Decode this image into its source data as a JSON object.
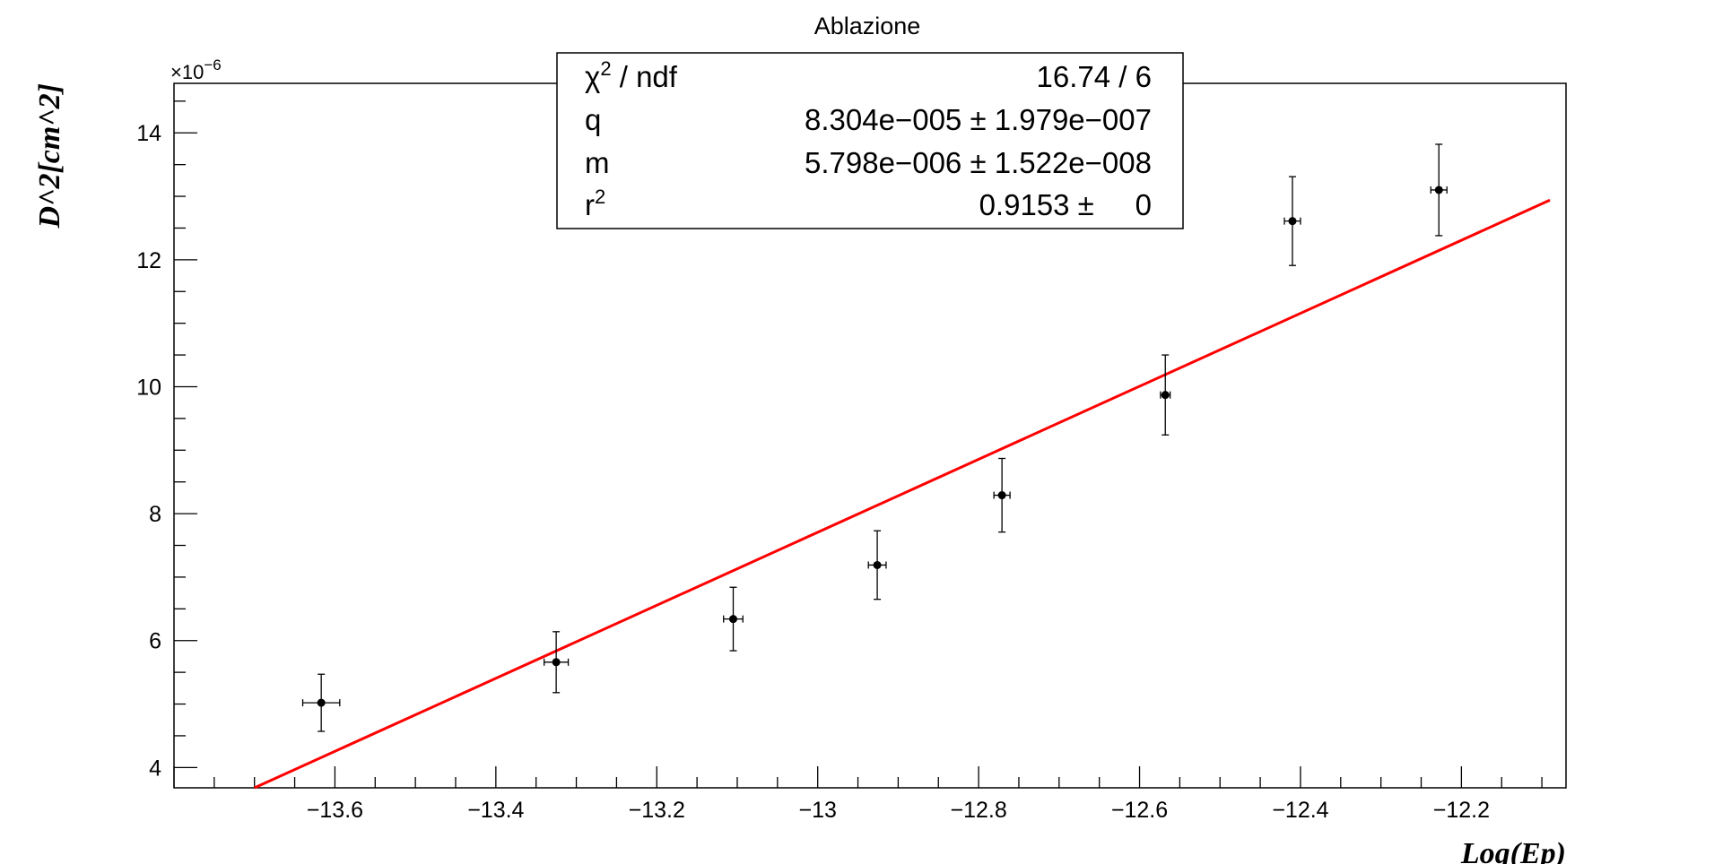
{
  "chart_data": {
    "type": "scatter",
    "title": "Ablazione",
    "xlabel": "Log(Ep)",
    "ylabel": "D^2[cm^2]",
    "y_multiplier": "×10",
    "y_multiplier_exp": "−6",
    "xlim": [
      -13.8,
      -12.07
    ],
    "ylim": [
      3.68,
      14.78
    ],
    "x_ticks": [
      -13.6,
      -13.4,
      -13.2,
      -13.0,
      -12.8,
      -12.6,
      -12.4,
      -12.2
    ],
    "x_tick_labels": [
      "−13.6",
      "−13.4",
      "−13.2",
      "−13",
      "−12.8",
      "−12.6",
      "−12.4",
      "−12.2"
    ],
    "y_ticks": [
      4,
      6,
      8,
      10,
      12,
      14
    ],
    "y_tick_labels": [
      "4",
      "6",
      "8",
      "10",
      "12",
      "14"
    ],
    "points": [
      {
        "x": -13.617,
        "y": 5.02,
        "xerr": 0.023,
        "yerr": 0.45
      },
      {
        "x": -13.325,
        "y": 5.66,
        "xerr": 0.015,
        "yerr": 0.48
      },
      {
        "x": -13.105,
        "y": 6.34,
        "xerr": 0.012,
        "yerr": 0.5
      },
      {
        "x": -12.926,
        "y": 7.19,
        "xerr": 0.011,
        "yerr": 0.54
      },
      {
        "x": -12.771,
        "y": 8.29,
        "xerr": 0.01,
        "yerr": 0.58
      },
      {
        "x": -12.568,
        "y": 9.87,
        "xerr": 0.006,
        "yerr": 0.63
      },
      {
        "x": -12.41,
        "y": 12.61,
        "xerr": 0.01,
        "yerr": 0.7
      },
      {
        "x": -12.228,
        "y": 13.1,
        "xerr": 0.01,
        "yerr": 0.72
      }
    ],
    "fit": {
      "color": "#ff0000",
      "x_range": [
        -13.7,
        -12.09
      ],
      "line": [
        [
          -13.7,
          3.68
        ],
        [
          -12.09,
          12.94
        ]
      ]
    },
    "stats_box": {
      "rows": [
        {
          "label_base": "χ",
          "label_sup": "2",
          "label_rest": " / ndf",
          "value": "16.74 / 6"
        },
        {
          "label_base": "q",
          "label_sup": "",
          "label_rest": "",
          "value": "8.304e−005 ± 1.979e−007"
        },
        {
          "label_base": "m",
          "label_sup": "",
          "label_rest": "",
          "value": "5.798e−006 ± 1.522e−008"
        },
        {
          "label_base": "r",
          "label_sup": "2",
          "label_rest": "",
          "value": "0.9153 ±     0"
        }
      ]
    },
    "point_color": "#000000",
    "grid": false
  }
}
